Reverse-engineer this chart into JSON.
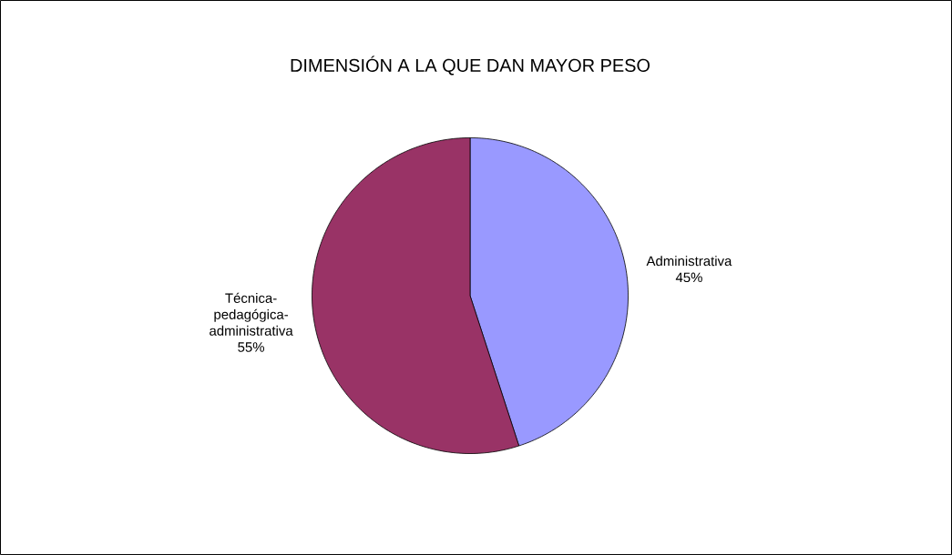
{
  "chart_data": {
    "type": "pie",
    "title": "DIMENSIÓN A LA QUE DAN MAYOR PESO",
    "categories": [
      "Administrativa",
      "Técnica-pedagógica-administrativa"
    ],
    "values": [
      45,
      55
    ],
    "value_labels": [
      "45%",
      "55%"
    ],
    "colors": [
      "#9999ff",
      "#993366"
    ]
  }
}
